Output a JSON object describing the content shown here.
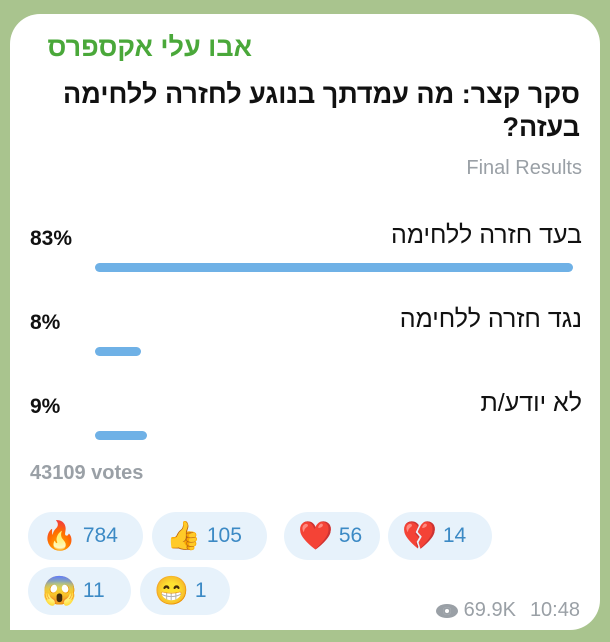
{
  "channel_name": "אבו עלי אקספרס",
  "poll": {
    "question": "סקר קצר: מה עמדתך בנוגע לחזרה ללחימה בעזה?",
    "status": "Final Results",
    "options": [
      {
        "text": "בעד חזרה ללחימה",
        "percent_label": "83%",
        "percent": 83
      },
      {
        "text": "נגד חזרה ללחימה",
        "percent_label": "8%",
        "percent": 8
      },
      {
        "text": "לא יודע/ת",
        "percent_label": "9%",
        "percent": 9
      }
    ],
    "votes": "43109 votes",
    "bar_color": "#6fb1e6"
  },
  "reactions": [
    {
      "emoji": "🔥",
      "icon": "fire-icon",
      "count": "784"
    },
    {
      "emoji": "👍",
      "icon": "thumbs-up-icon",
      "count": "105"
    },
    {
      "emoji": "❤️",
      "icon": "heart-icon",
      "count": "56"
    },
    {
      "emoji": "💔",
      "icon": "broken-heart-icon",
      "count": "14"
    },
    {
      "emoji": "😱",
      "icon": "screaming-face-icon",
      "count": "11"
    },
    {
      "emoji": "😁",
      "icon": "grinning-face-icon",
      "count": "1"
    }
  ],
  "footer": {
    "views": "69.9K",
    "time": "10:48"
  }
}
